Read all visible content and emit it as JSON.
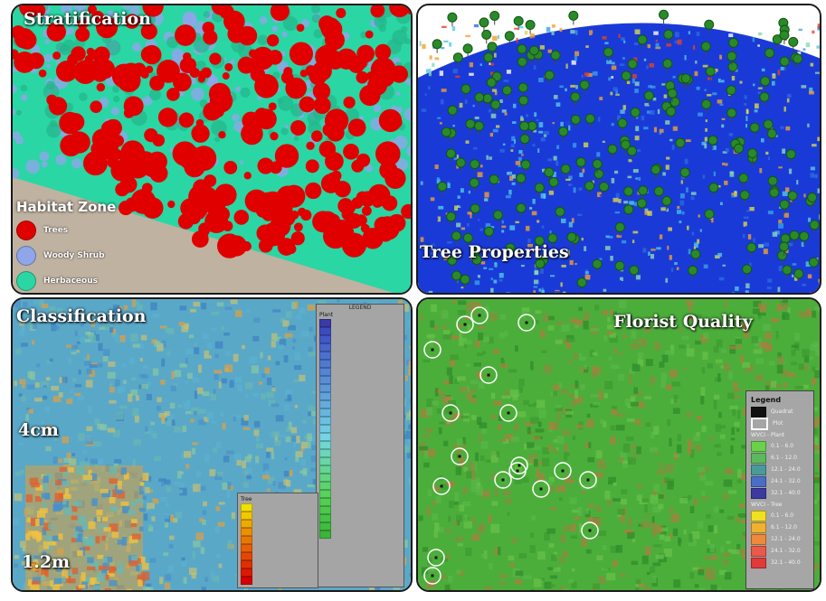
{
  "panels": {
    "stratification": {
      "title": "Stratification",
      "legend_title": "Habitat Zone",
      "items": [
        {
          "label": "Trees",
          "color": "#e00000"
        },
        {
          "label": "Woody Shrub",
          "color": "#8fa6ea"
        },
        {
          "label": "Herbaceous",
          "color": "#2ad6a4"
        }
      ]
    },
    "tree_properties": {
      "title": "Tree Properties"
    },
    "classification": {
      "title": "Classification",
      "label_top": "4cm",
      "label_bottom": "1.2m",
      "legend_title": "LEGEND",
      "plant_title": "Plant",
      "tree_title": "Tree",
      "plant_colors": [
        "#3a3aa8",
        "#3c4cc0",
        "#4058c8",
        "#4766cc",
        "#4b70cf",
        "#4f7ad2",
        "#5484d4",
        "#588ed6",
        "#5c98d8",
        "#60a2da",
        "#64acdc",
        "#68b6de",
        "#6cc0e0",
        "#70cae2",
        "#74d4e4",
        "#70d6d0",
        "#6cd6bc",
        "#68d6a8",
        "#64d694",
        "#60d680",
        "#5cd46c",
        "#58d25e",
        "#52ce52",
        "#4cc84c",
        "#46c246",
        "#40bc40",
        "#3ab63a"
      ],
      "tree_colors": [
        "#f0e000",
        "#f0c800",
        "#eeaa00",
        "#ec9000",
        "#ea7800",
        "#e86000",
        "#e44800",
        "#e03000",
        "#dc1a00",
        "#d80000"
      ]
    },
    "florist_quality": {
      "title": "Florist Quality",
      "legend_title": "Legend",
      "legend_items": [
        {
          "label": "Quadrat",
          "color": "#111111"
        },
        {
          "label": "Plot",
          "color": "#ffffff"
        }
      ],
      "plant_header": "WVCI - Plant",
      "plant_ranges": [
        {
          "label": "0.1 - 6.0",
          "color": "#6ad24a"
        },
        {
          "label": "6.1 - 12.0",
          "color": "#5cb85c"
        },
        {
          "label": "12.1 - 24.0",
          "color": "#4a9a9a"
        },
        {
          "label": "24.1 - 32.0",
          "color": "#4a6ec8"
        },
        {
          "label": "32.1 - 40.0",
          "color": "#3a3aa0"
        }
      ],
      "tree_header": "WVCI - Tree",
      "tree_ranges": [
        {
          "label": "0.1 - 6.0",
          "color": "#f2e020"
        },
        {
          "label": "6.1 - 12.0",
          "color": "#f0b030"
        },
        {
          "label": "12.1 - 24.0",
          "color": "#ee8a3a"
        },
        {
          "label": "24.1 - 32.0",
          "color": "#ea5a4a"
        },
        {
          "label": "32.1 - 40.0",
          "color": "#e03a3a"
        }
      ]
    }
  }
}
